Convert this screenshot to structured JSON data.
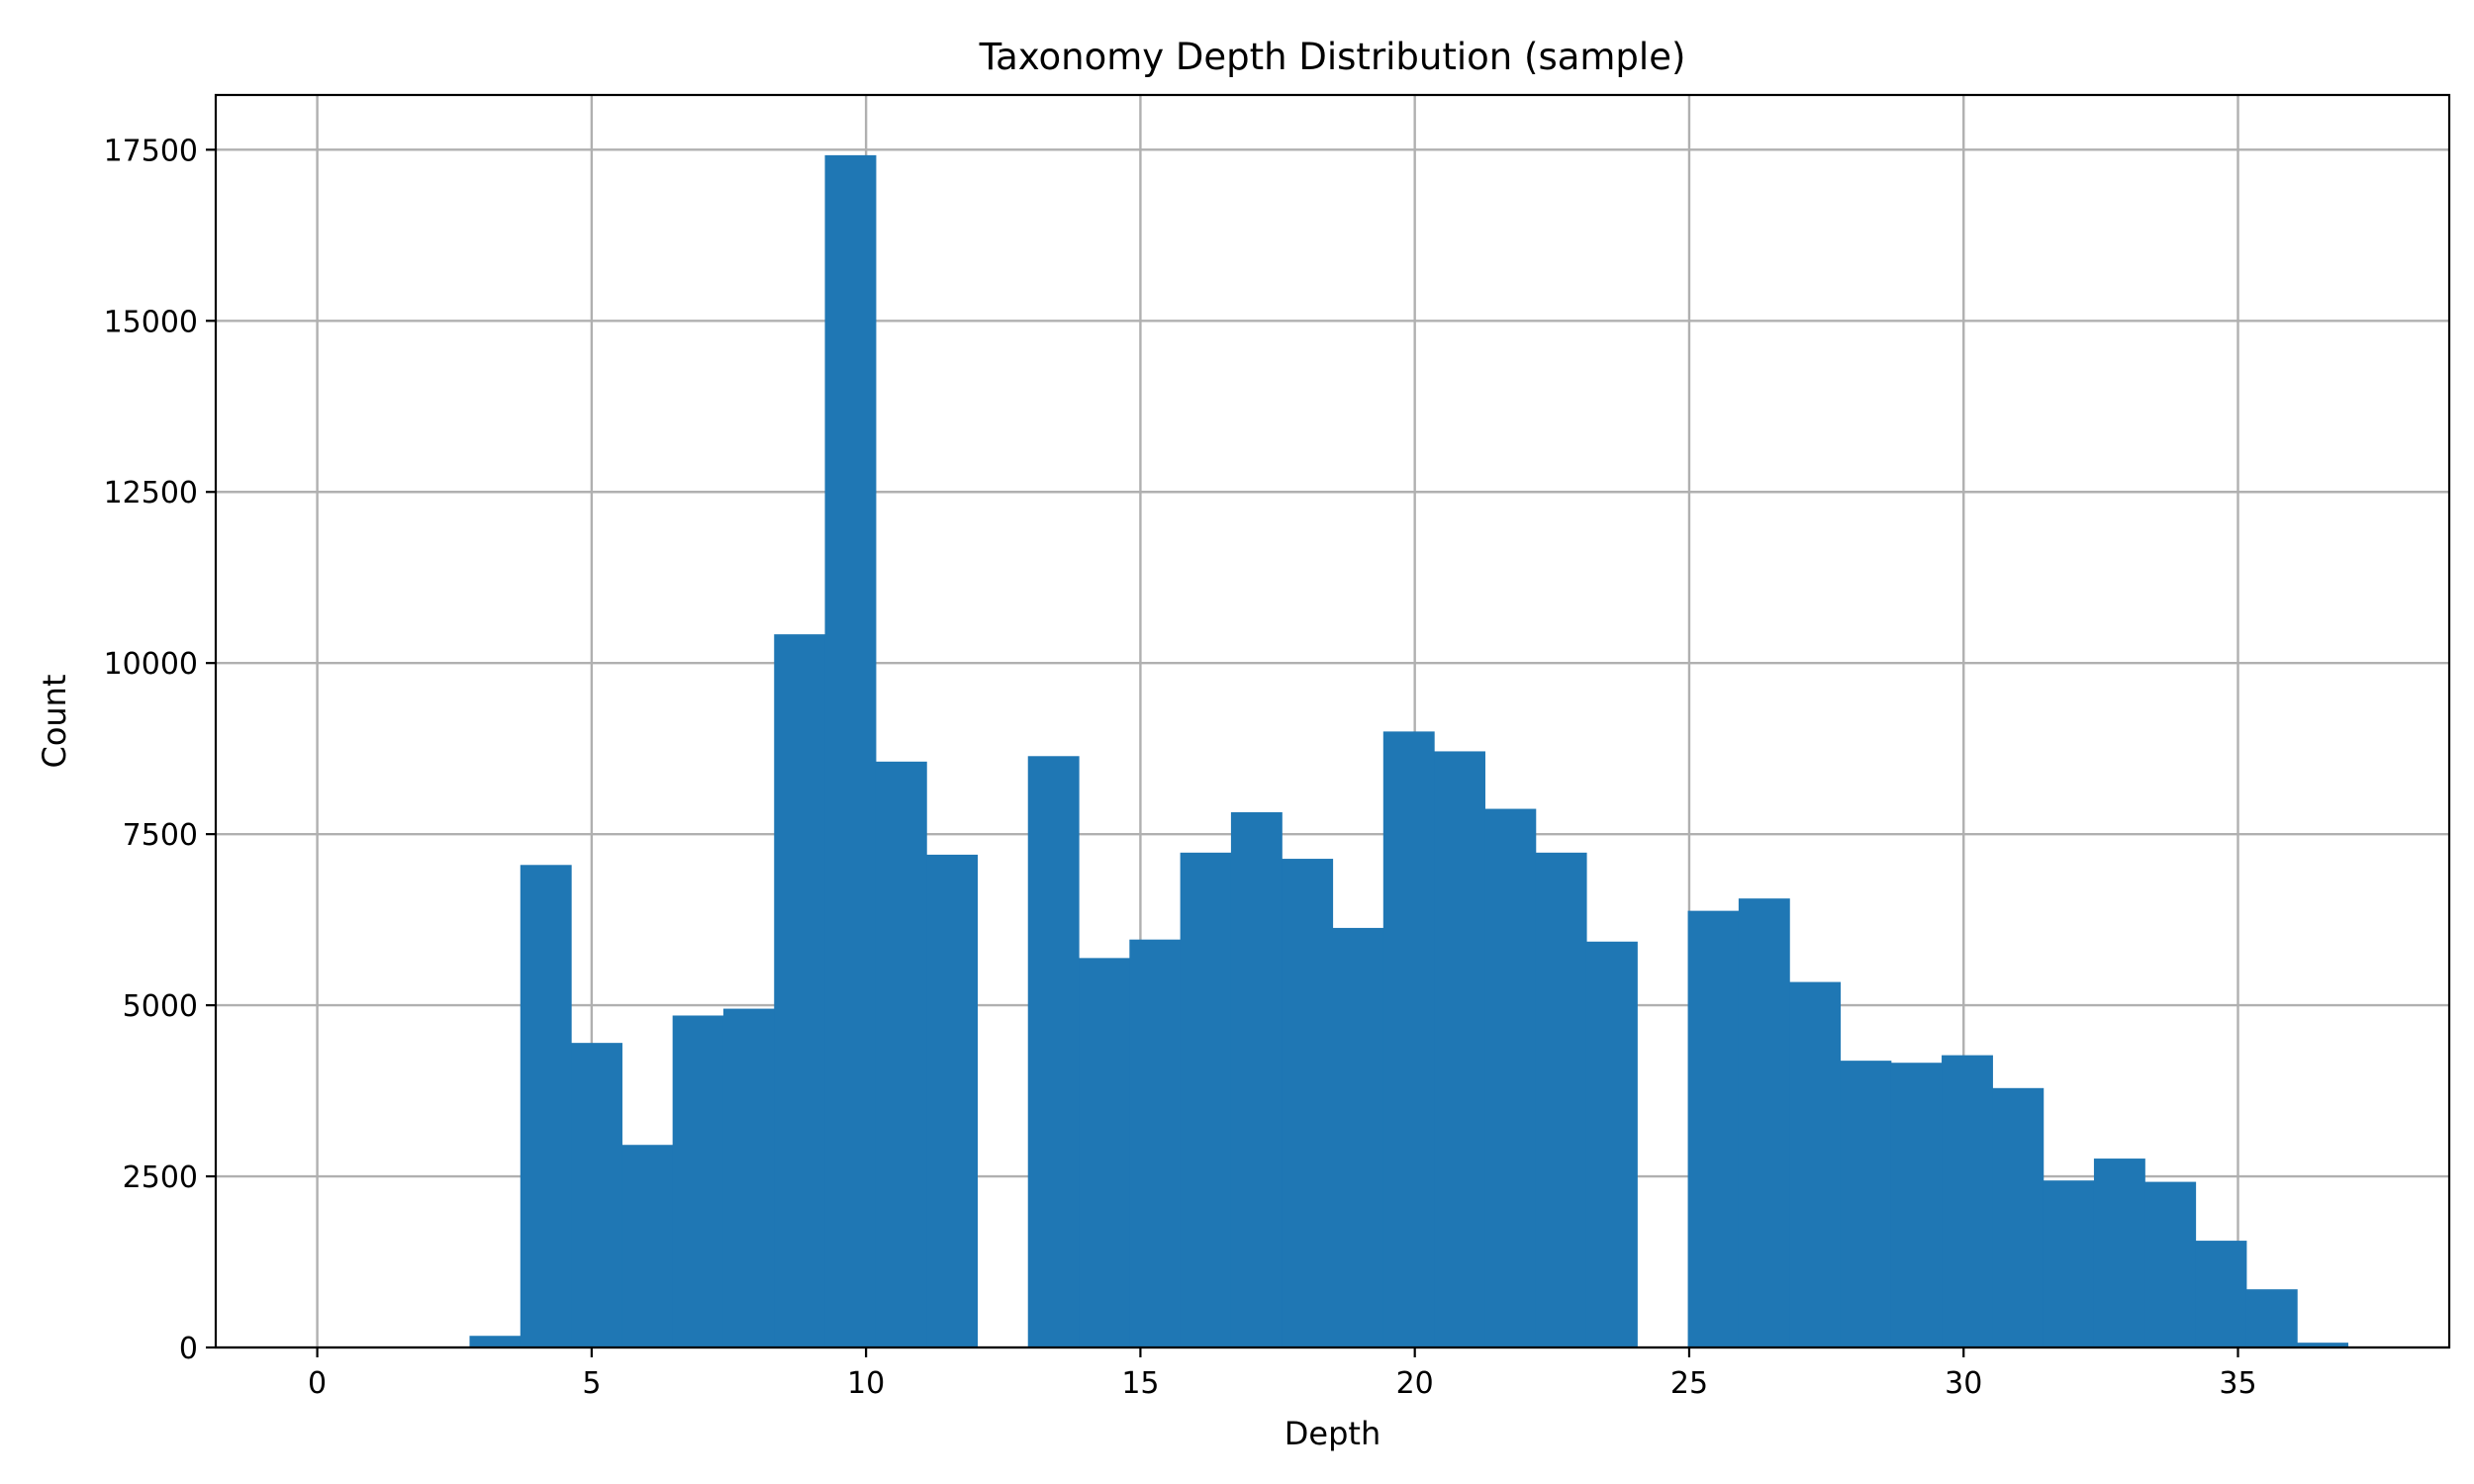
{
  "chart_data": {
    "type": "bar",
    "title": "Taxonomy Depth Distribution (sample)",
    "xlabel": "Depth",
    "ylabel": "Count",
    "xlim": [
      -1.85,
      38.85
    ],
    "ylim": [
      0,
      18300
    ],
    "xticks": [
      0,
      5,
      10,
      15,
      20,
      25,
      30,
      35
    ],
    "yticks": [
      0,
      2500,
      5000,
      7500,
      10000,
      12500,
      15000,
      17500
    ],
    "grid": true,
    "color": "#1f77b4",
    "bin_edges": [
      0,
      0.925,
      1.85,
      2.775,
      3.7,
      4.625,
      5.55,
      6.475,
      7.4,
      8.325,
      9.25,
      10.175,
      11.1,
      12.025,
      12.95,
      13.875,
      14.8,
      15.725,
      16.65,
      17.575,
      18.5,
      19.425,
      20.35,
      21.275,
      22.2,
      23.125,
      24.05,
      24.975,
      25.9,
      26.825,
      27.75,
      28.675,
      29.6,
      30.525,
      31.45,
      32.375,
      33.3,
      34.225,
      35.15,
      36.075,
      37
    ],
    "values": [
      0,
      0,
      0,
      170,
      7050,
      4450,
      2960,
      4850,
      4950,
      10420,
      17420,
      8560,
      7200,
      0,
      8640,
      5690,
      5960,
      7230,
      7820,
      7140,
      6130,
      9000,
      8710,
      7870,
      7230,
      5930,
      0,
      6380,
      6560,
      5340,
      4190,
      4160,
      4270,
      3790,
      2440,
      2760,
      2420,
      1560,
      850,
      70
    ]
  }
}
